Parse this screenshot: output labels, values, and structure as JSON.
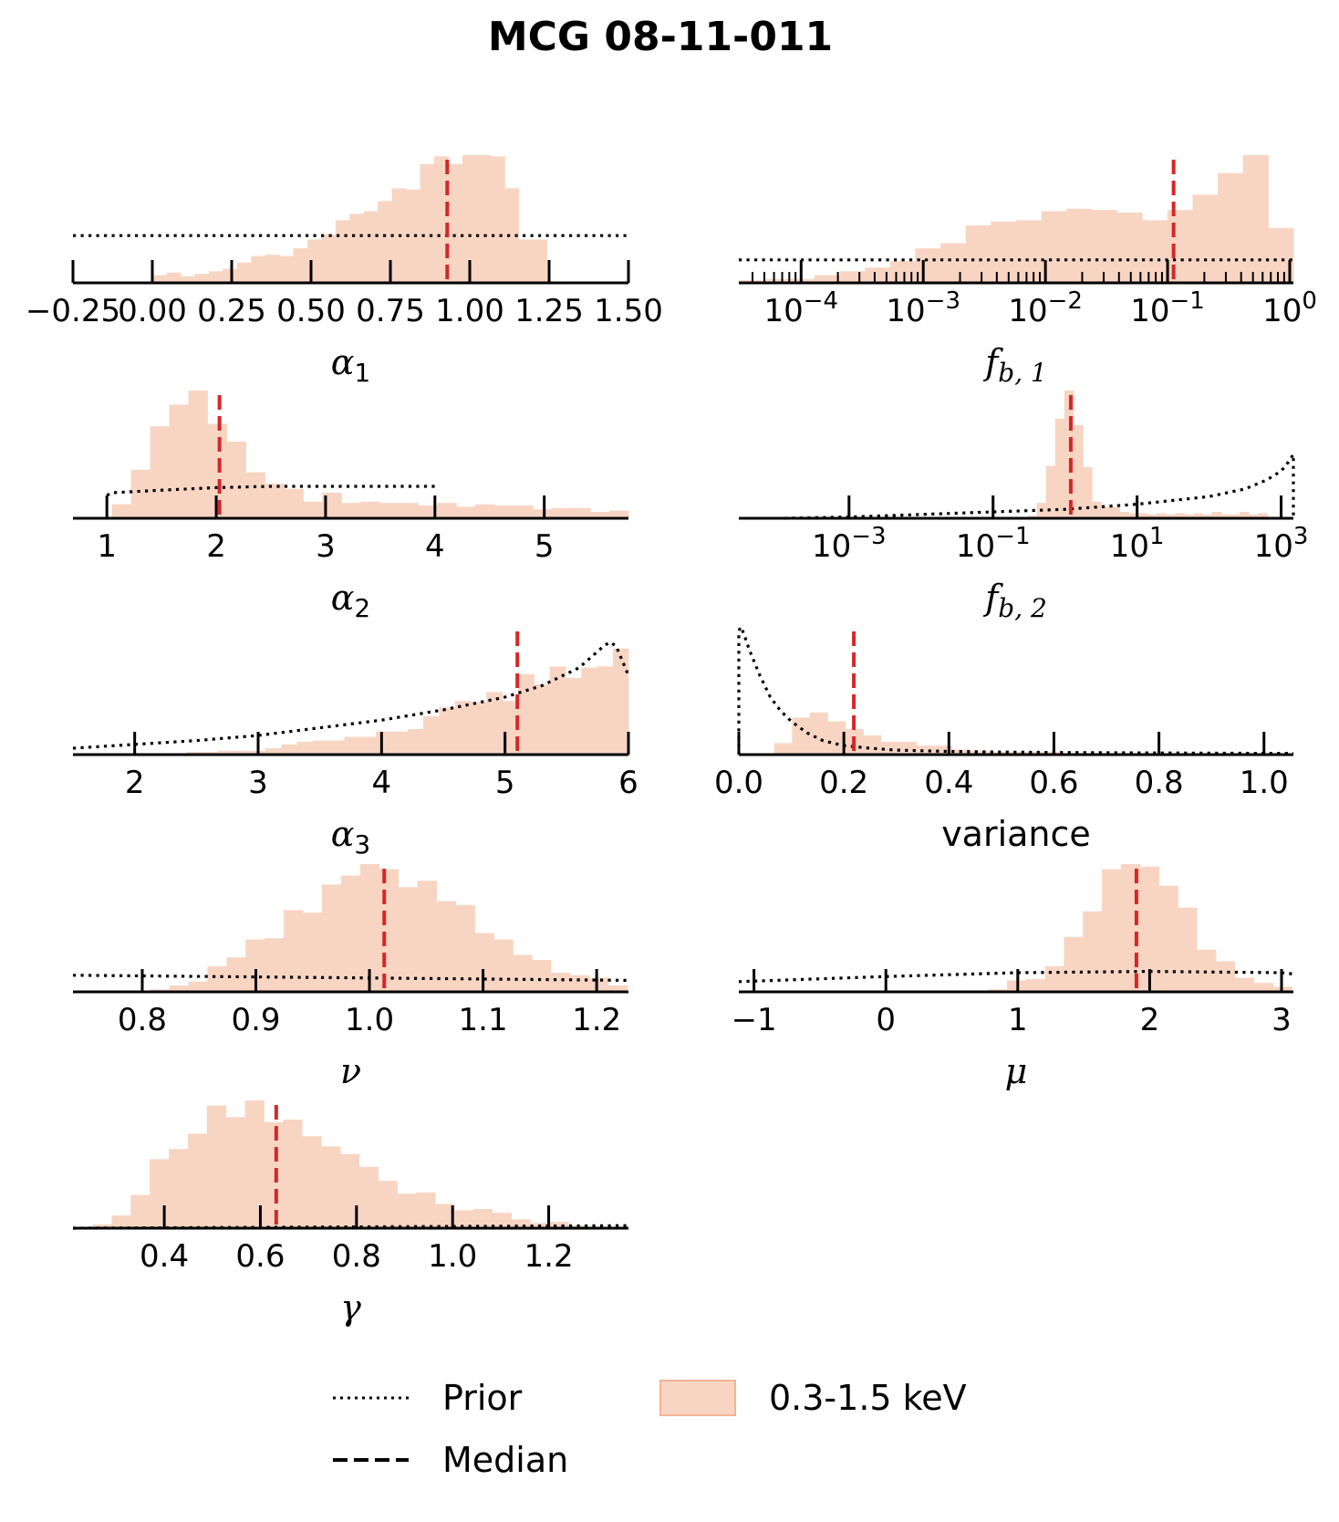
{
  "figure": {
    "title": "MCG 08-11-011",
    "colors": {
      "hist_fill": "#f8d5c3",
      "hist_edge": "#f2b493",
      "median": "#d62728",
      "prior": "#000000",
      "axis": "#000000"
    }
  },
  "legend": {
    "items": [
      {
        "label": "Prior",
        "style": "dotted"
      },
      {
        "label": "Median",
        "style": "dashed"
      },
      {
        "label": "0.3-1.5 keV",
        "style": "patch"
      }
    ]
  },
  "chart_data": [
    {
      "type": "bar",
      "id": "alpha1",
      "xlabel": "α",
      "xlabel_sub": "1",
      "scale": "linear",
      "xlim": [
        -0.25,
        1.5
      ],
      "ticks": [
        -0.25,
        0.0,
        0.25,
        0.5,
        0.75,
        1.0,
        1.25,
        1.5
      ],
      "tick_labels": [
        "−0.25",
        "0.00",
        "0.25",
        "0.50",
        "0.75",
        "1.00",
        "1.25",
        "1.50"
      ],
      "median": 0.929,
      "hist": {
        "edges_start": 0.0,
        "bin_width": 0.0444,
        "values": [
          0.06,
          0.08,
          0.05,
          0.07,
          0.09,
          0.11,
          0.16,
          0.21,
          0.22,
          0.21,
          0.27,
          0.34,
          0.38,
          0.49,
          0.54,
          0.56,
          0.64,
          0.74,
          0.73,
          0.93,
          0.99,
          0.93,
          1.0,
          1.0,
          0.99,
          0.74,
          0.34,
          0.34
        ]
      },
      "prior": {
        "kind": "uniform",
        "x": [
          -0.25,
          1.5
        ],
        "level": 0.37
      }
    },
    {
      "type": "bar",
      "id": "fb1",
      "xlabel": "f",
      "xlabel_sub": "b, 1",
      "scale": "log",
      "xlim_log10": [
        -4.51,
        0.03
      ],
      "ticks_log10": [
        -4,
        -3,
        -2,
        -1,
        0
      ],
      "tick_labels": [
        "10⁻⁴",
        "10⁻³",
        "10⁻²",
        "10⁻¹",
        "10⁰"
      ],
      "minor_ticks": true,
      "median": 0.112,
      "hist": {
        "edges_start_log10": -4.51,
        "bin_width_log10": 0.1367,
        "values": [
          0.02,
          0.02,
          0.02,
          0.02,
          0.03,
          0.03,
          0.03,
          0.03,
          0.03,
          0.02,
          0.05,
          0.05,
          0.05,
          0.06,
          0.07,
          0.06,
          0.06,
          0.09,
          0.09,
          0.12,
          0.16,
          0.17,
          0.26,
          0.29,
          0.43,
          0.46,
          0.49,
          0.55,
          0.53,
          0.57,
          0.58,
          0.57,
          0.55,
          0.62,
          0.58,
          0.57,
          0.56,
          0.57,
          0.55,
          0.57,
          0.55,
          0.59,
          0.58,
          0.55,
          0.57,
          0.55,
          0.58,
          0.59
        ]
      },
      "hist_top_profile": [
        0.02,
        0.03,
        0.03,
        0.06,
        0.09,
        0.12,
        0.17,
        0.27,
        0.31,
        0.45,
        0.48,
        0.49,
        0.56,
        0.58,
        0.57,
        0.55,
        0.49,
        0.57,
        0.69,
        0.86,
        1.0,
        0.43
      ],
      "prior": {
        "kind": "uniform",
        "level": 0.18
      }
    },
    {
      "type": "bar",
      "id": "alpha2",
      "xlabel": "α",
      "xlabel_sub": "2",
      "scale": "linear",
      "xlim": [
        0.69,
        5.77
      ],
      "ticks": [
        1,
        2,
        3,
        4,
        5
      ],
      "tick_labels": [
        "1",
        "2",
        "3",
        "4",
        "5"
      ],
      "median": 2.03,
      "hist": {
        "edges_start": 0.87,
        "bin_width": 0.175,
        "values": [
          0.01,
          0.11,
          0.38,
          0.72,
          0.89,
          1.0,
          0.74,
          0.6,
          0.36,
          0.27,
          0.23,
          0.13,
          0.2,
          0.12,
          0.13,
          0.12,
          0.12,
          0.1,
          0.12,
          0.09,
          0.11,
          0.1,
          0.1,
          0.07,
          0.08,
          0.08,
          0.05,
          0.06
        ]
      },
      "prior": {
        "kind": "curve",
        "x": [
          1.0,
          1.05,
          1.5,
          2.0,
          2.5,
          3.0,
          3.5,
          4.0,
          4.0
        ],
        "y": [
          0.18,
          0.2,
          0.22,
          0.24,
          0.25,
          0.25,
          0.25,
          0.25,
          0.25
        ]
      }
    },
    {
      "type": "bar",
      "id": "fb2",
      "xlabel": "f",
      "xlabel_sub": "b, 2",
      "scale": "log",
      "xlim_log10": [
        -4.53,
        3.17
      ],
      "ticks_log10": [
        -3,
        -1,
        1,
        3
      ],
      "tick_labels": [
        "10⁻³",
        "10⁻¹",
        "10¹",
        "10³"
      ],
      "median": 1.2,
      "hist": {
        "edges_start_log10": -0.65,
        "bin_width_log10": 0.128,
        "values": [
          0.01,
          0.02,
          0.12,
          0.41,
          0.78,
          1.0,
          0.73,
          0.4,
          0.13,
          0.09,
          0.09,
          0.05,
          0.04,
          0.04,
          0.03,
          0.04,
          0.03,
          0.04,
          0.03,
          0.04,
          0.03,
          0.05,
          0.03,
          0.03,
          0.05,
          0.03,
          0.04
        ]
      },
      "prior": {
        "kind": "curve",
        "x_log10": [
          -3.9,
          -3,
          -2,
          -1,
          0,
          0.5,
          1,
          1.5,
          2,
          2.5,
          2.8,
          3.0,
          3.1,
          3.17,
          3.17
        ],
        "y": [
          0.0,
          0.01,
          0.03,
          0.05,
          0.07,
          0.09,
          0.11,
          0.14,
          0.17,
          0.23,
          0.3,
          0.37,
          0.44,
          0.5,
          0.0
        ]
      }
    },
    {
      "type": "bar",
      "id": "alpha3",
      "xlabel": "α",
      "xlabel_sub": "3",
      "scale": "linear",
      "xlim": [
        1.5,
        6.0
      ],
      "ticks": [
        2,
        3,
        4,
        5,
        6
      ],
      "tick_labels": [
        "2",
        "3",
        "4",
        "5",
        "6"
      ],
      "median": 5.1,
      "hist": {
        "edges_start": 2.29,
        "bin_width": 0.128,
        "values": [
          0.01,
          0.02,
          0.02,
          0.03,
          0.03,
          0.03,
          0.05,
          0.08,
          0.1,
          0.11,
          0.11,
          0.14,
          0.14,
          0.18,
          0.18,
          0.2,
          0.3,
          0.37,
          0.42,
          0.41,
          0.49,
          0.42,
          0.63,
          0.55,
          0.69,
          0.6,
          0.68,
          0.69,
          0.83,
          0.84,
          0.92,
          1.0
        ]
      },
      "prior": {
        "kind": "curve",
        "x": [
          1.5,
          2.0,
          2.5,
          3.0,
          3.5,
          4.0,
          4.5,
          5.0,
          5.3,
          5.6,
          5.8,
          5.85,
          5.9,
          6.0
        ],
        "y": [
          0.05,
          0.08,
          0.11,
          0.15,
          0.21,
          0.27,
          0.35,
          0.45,
          0.54,
          0.68,
          0.85,
          0.88,
          0.85,
          0.62
        ]
      }
    },
    {
      "type": "bar",
      "id": "variance",
      "xlabel": "variance",
      "xlabel_sub": "",
      "scale": "linear",
      "xlim": [
        0.0,
        1.056
      ],
      "ticks": [
        0.0,
        0.2,
        0.4,
        0.6,
        0.8,
        1.0
      ],
      "tick_labels": [
        "0.0",
        "0.2",
        "0.4",
        "0.6",
        "0.8",
        "1.0"
      ],
      "median": 0.219,
      "hist": {
        "edges_start": 0.0,
        "bin_width": 0.0338,
        "values": [
          0.0,
          0.0,
          0.09,
          0.29,
          0.33,
          0.26,
          0.2,
          0.15,
          0.1,
          0.1,
          0.07,
          0.07,
          0.04,
          0.03,
          0.02,
          0.02,
          0.02,
          0.02,
          0.01,
          0.01,
          0.01,
          0.01,
          0.01,
          0.01,
          0.01,
          0.0,
          0.0,
          0.0,
          0.0,
          0.0,
          0.0
        ]
      },
      "prior": {
        "kind": "curve",
        "x": [
          0.0,
          0.0,
          0.004,
          0.01,
          0.02,
          0.04,
          0.06,
          0.08,
          0.1,
          0.13,
          0.16,
          0.2,
          0.25,
          0.3,
          0.4,
          0.5,
          0.6,
          0.8,
          1.0,
          1.056
        ],
        "y": [
          0.0,
          0.97,
          1.0,
          0.94,
          0.82,
          0.62,
          0.45,
          0.34,
          0.26,
          0.17,
          0.11,
          0.07,
          0.05,
          0.035,
          0.025,
          0.02,
          0.017,
          0.013,
          0.01,
          0.01
        ]
      }
    },
    {
      "type": "bar",
      "id": "nu",
      "xlabel": "ν",
      "xlabel_sub": "",
      "scale": "linear",
      "xlim": [
        0.739,
        1.228
      ],
      "ticks": [
        0.8,
        0.9,
        1.0,
        1.1,
        1.2
      ],
      "tick_labels": [
        "0.8",
        "0.9",
        "1.0",
        "1.1",
        "1.2"
      ],
      "median": 1.013,
      "hist": {
        "edges_start": 0.807,
        "bin_width": 0.0168,
        "values": [
          0.02,
          0.05,
          0.08,
          0.2,
          0.27,
          0.41,
          0.42,
          0.64,
          0.62,
          0.84,
          0.91,
          1.0,
          0.96,
          0.82,
          0.87,
          0.71,
          0.68,
          0.46,
          0.41,
          0.29,
          0.25,
          0.15,
          0.13,
          0.11,
          0.05
        ]
      },
      "prior": {
        "kind": "curve",
        "x": [
          0.739,
          1.228
        ],
        "y": [
          0.13,
          0.09
        ]
      }
    },
    {
      "type": "bar",
      "id": "mu",
      "xlabel": "μ",
      "xlabel_sub": "",
      "scale": "linear",
      "xlim": [
        -1.115,
        3.09
      ],
      "ticks": [
        -1,
        0,
        1,
        2,
        3
      ],
      "tick_labels": [
        "−1",
        "0",
        "1",
        "2",
        "3"
      ],
      "median": 1.9,
      "hist": {
        "edges_start": 0.63,
        "bin_width": 0.144,
        "values": [
          0.01,
          0.02,
          0.09,
          0.1,
          0.2,
          0.43,
          0.63,
          0.96,
          1.0,
          0.98,
          0.83,
          0.66,
          0.33,
          0.24,
          0.11,
          0.07,
          0.04
        ]
      },
      "prior": {
        "kind": "curve",
        "x": [
          -1.115,
          0,
          1,
          2,
          3,
          3.09
        ],
        "y": [
          0.08,
          0.12,
          0.15,
          0.16,
          0.15,
          0.14
        ]
      }
    },
    {
      "type": "bar",
      "id": "gamma",
      "xlabel": "γ",
      "xlabel_sub": "",
      "scale": "linear",
      "xlim": [
        0.21,
        1.366
      ],
      "ticks": [
        0.4,
        0.6,
        0.8,
        1.0,
        1.2
      ],
      "tick_labels": [
        "0.4",
        "0.6",
        "0.8",
        "1.0",
        "1.2"
      ],
      "median": 0.633,
      "hist": {
        "edges_start": 0.251,
        "bin_width": 0.0396,
        "values": [
          0.03,
          0.1,
          0.26,
          0.54,
          0.62,
          0.74,
          0.96,
          0.87,
          1.0,
          0.83,
          0.85,
          0.72,
          0.64,
          0.58,
          0.48,
          0.37,
          0.27,
          0.28,
          0.19,
          0.14,
          0.15,
          0.12,
          0.07,
          0.04,
          0.05,
          0.02,
          0.01
        ]
      },
      "prior": {
        "kind": "curve",
        "x": [
          0.21,
          1.366
        ],
        "y": [
          0.0,
          0.02
        ]
      }
    }
  ]
}
